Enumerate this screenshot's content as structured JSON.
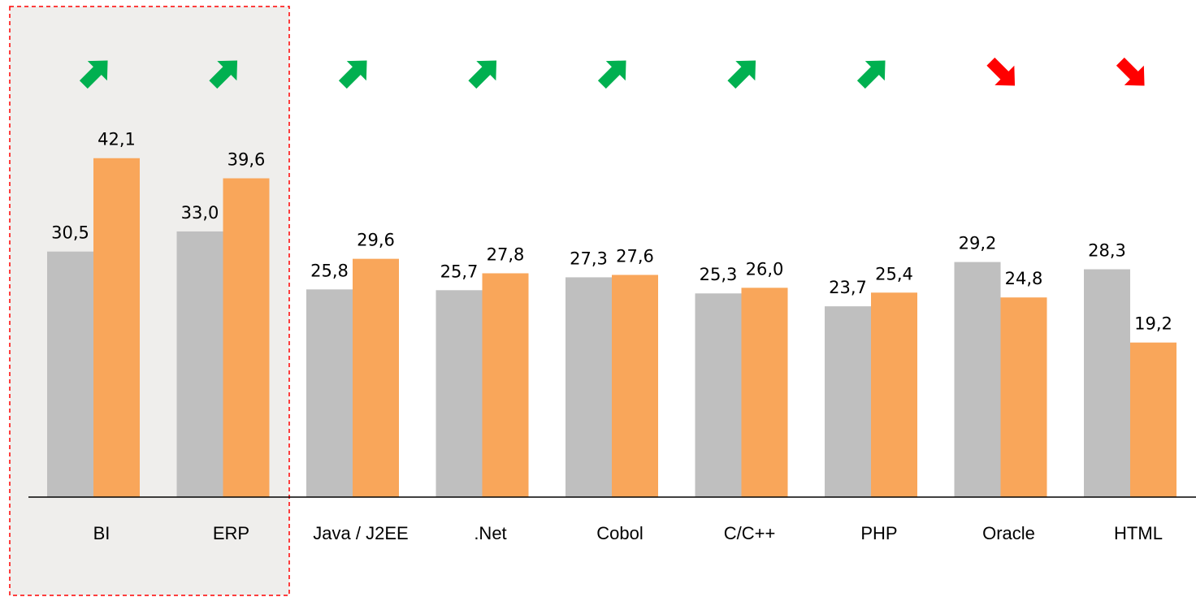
{
  "chart_data": {
    "type": "bar",
    "categories": [
      "BI",
      "ERP",
      "Java / J2EE",
      ".Net",
      "Cobol",
      "C/C++",
      "PHP",
      "Oracle",
      "HTML"
    ],
    "series": [
      {
        "color": "#bfbfbf",
        "values": [
          30.5,
          33.0,
          25.8,
          25.7,
          27.3,
          25.3,
          23.7,
          29.2,
          28.3
        ],
        "value_labels": [
          "30,5",
          "33,0",
          "25,8",
          "25,7",
          "27,3",
          "25,3",
          "23,7",
          "29,2",
          "28,3"
        ]
      },
      {
        "color": "#f9a65a",
        "values": [
          42.1,
          39.6,
          29.6,
          27.8,
          27.6,
          26.0,
          25.4,
          24.8,
          19.2
        ],
        "value_labels": [
          "42,1",
          "39,6",
          "29,6",
          "27,8",
          "27,6",
          "26,0",
          "25,4",
          "24,8",
          "19,2"
        ]
      }
    ],
    "ylim": [
      0,
      45
    ]
  }
}
